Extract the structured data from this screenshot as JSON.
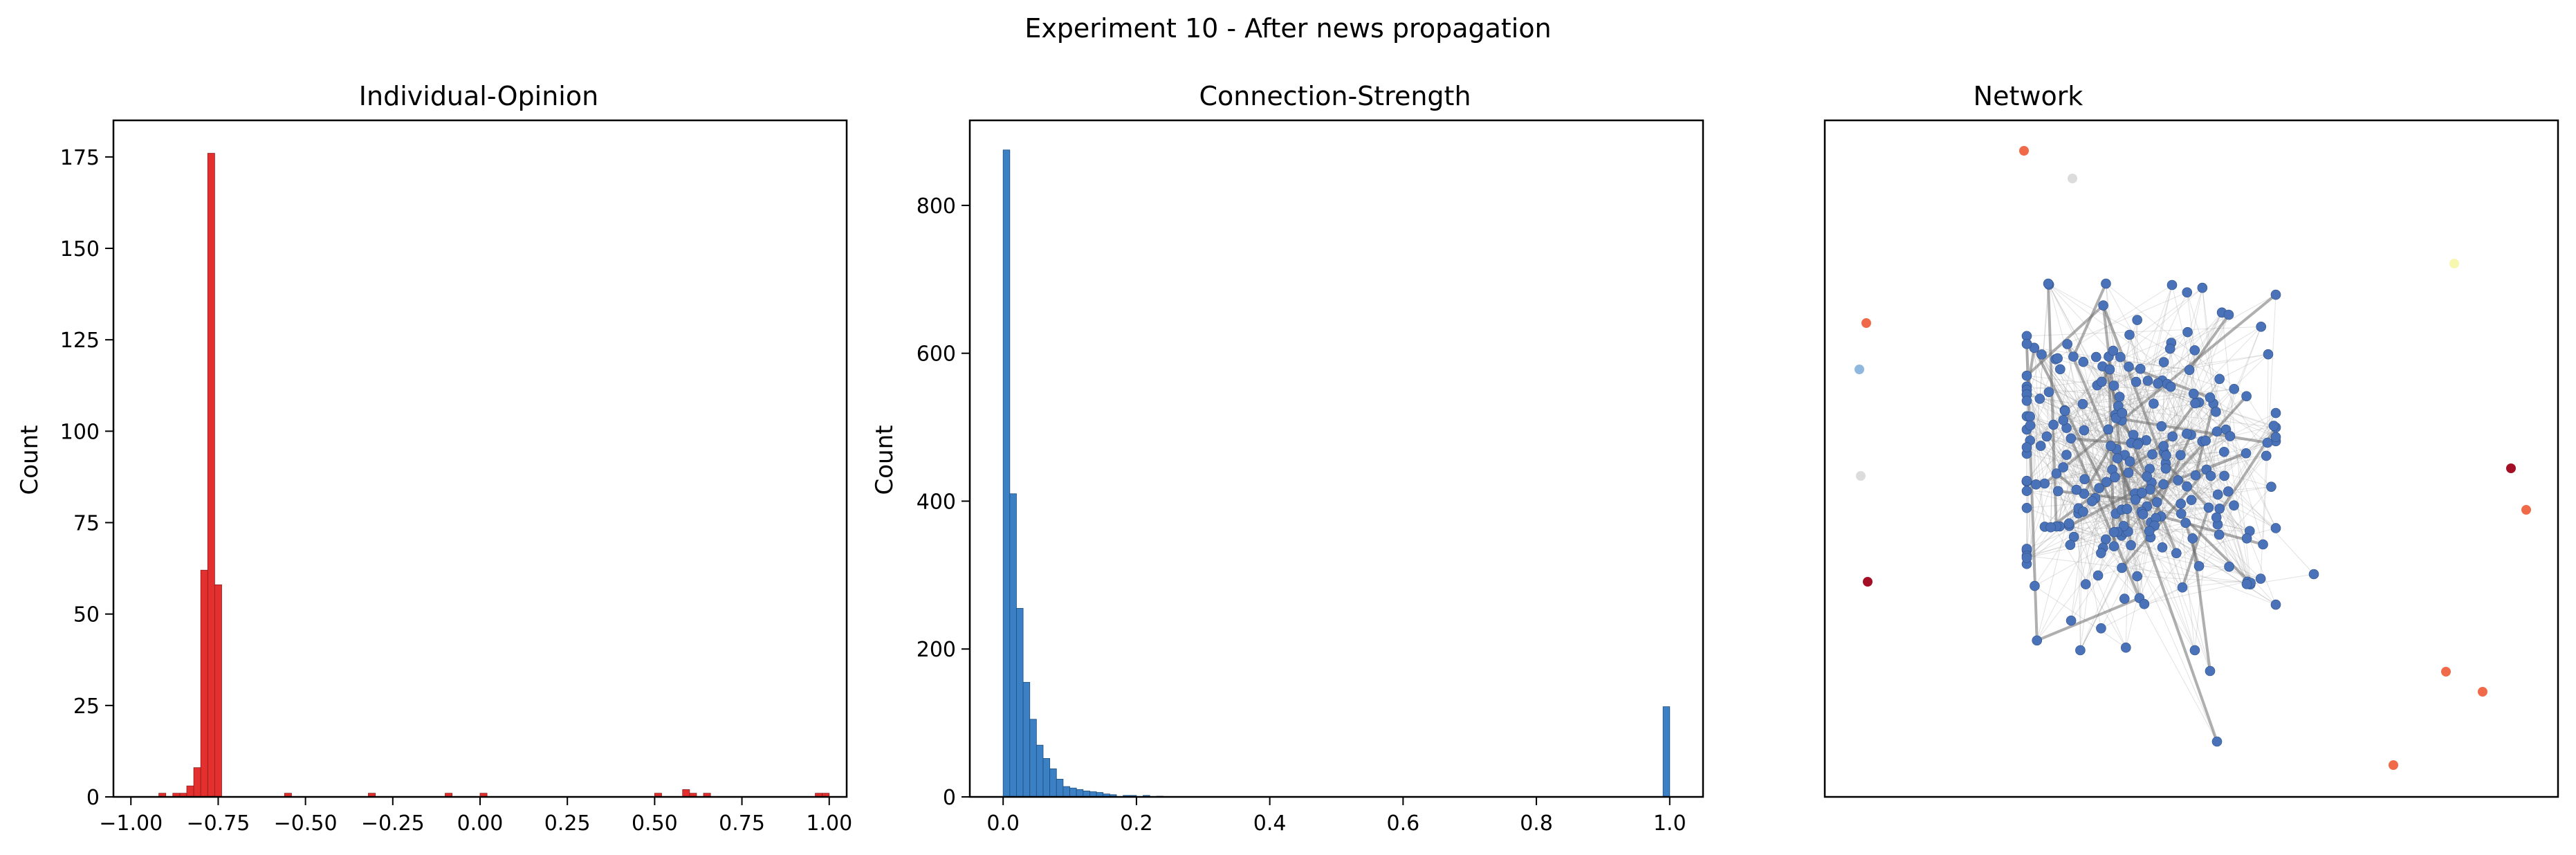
{
  "figure": {
    "suptitle": "Experiment 10 - After news propagation"
  },
  "chart_data": [
    {
      "type": "bar",
      "title": "Individual-Opinion",
      "xlabel": "",
      "ylabel": "Count",
      "xlim": [
        -1.05,
        1.05
      ],
      "ylim": [
        0,
        185
      ],
      "xticks": [
        -1.0,
        -0.75,
        -0.5,
        -0.25,
        0.0,
        0.25,
        0.5,
        0.75,
        1.0
      ],
      "xtick_labels": [
        "−1.00",
        "−0.75",
        "−0.50",
        "−0.25",
        "0.00",
        "0.25",
        "0.50",
        "0.75",
        "1.00"
      ],
      "yticks": [
        0,
        25,
        50,
        75,
        100,
        125,
        150,
        175
      ],
      "ytick_labels": [
        "0",
        "25",
        "50",
        "75",
        "100",
        "125",
        "150",
        "175"
      ],
      "bin_width": 0.02,
      "bin_starts": [
        -0.92,
        -0.88,
        -0.86,
        -0.84,
        -0.82,
        -0.8,
        -0.78,
        -0.76,
        -0.56,
        -0.32,
        -0.1,
        0.0,
        0.5,
        0.58,
        0.6,
        0.64,
        0.96,
        0.98
      ],
      "values": [
        1,
        1,
        1,
        3,
        8,
        62,
        176,
        58,
        1,
        1,
        1,
        1,
        1,
        2,
        1,
        1,
        1,
        1
      ],
      "color": "#e3302f",
      "edge_color": "#8a1d1d"
    },
    {
      "type": "bar",
      "title": "Connection-Strength",
      "xlabel": "",
      "ylabel": "Count",
      "xlim": [
        -0.05,
        1.05
      ],
      "ylim": [
        0,
        915
      ],
      "xticks": [
        0.0,
        0.2,
        0.4,
        0.6,
        0.8,
        1.0
      ],
      "xtick_labels": [
        "0.0",
        "0.2",
        "0.4",
        "0.6",
        "0.8",
        "1.0"
      ],
      "yticks": [
        0,
        200,
        400,
        600,
        800
      ],
      "ytick_labels": [
        "0",
        "200",
        "400",
        "600",
        "800"
      ],
      "bin_width": 0.01,
      "bin_starts": [
        0.0,
        0.01,
        0.02,
        0.03,
        0.04,
        0.05,
        0.06,
        0.07,
        0.08,
        0.09,
        0.1,
        0.11,
        0.12,
        0.13,
        0.14,
        0.15,
        0.16,
        0.18,
        0.19,
        0.21,
        0.23,
        0.99
      ],
      "values": [
        875,
        410,
        255,
        155,
        105,
        70,
        52,
        38,
        24,
        14,
        12,
        10,
        8,
        7,
        6,
        4,
        3,
        2,
        2,
        2,
        1,
        122
      ],
      "color": "#3b7fc4",
      "edge_color": "#1f4f7a"
    }
  ],
  "network": {
    "title": "Network",
    "cluster_color": "#4a72b8",
    "edge_color": "#8c8c8c",
    "colors": {
      "orange_red": "#f06a4a",
      "dark_red": "#a50f26",
      "light_blue": "#8fb8df",
      "light_gray": "#dcdcdc",
      "pale_yellow": "#f7f7b0"
    }
  }
}
